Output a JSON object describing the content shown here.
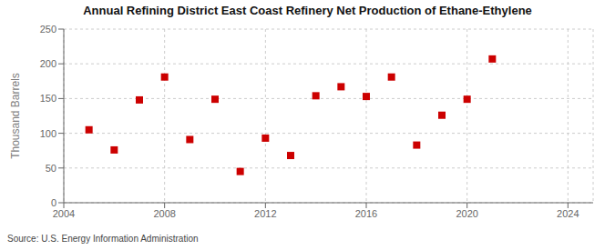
{
  "chart_data": {
    "type": "scatter",
    "title": "Annual Refining District East Coast Refinery Net Production of Ethane-Ethylene",
    "y_label": "Thousand Barrels",
    "annotations": [
      "Source: U.S. Energy Information Administration"
    ],
    "x": [
      2005,
      2006,
      2007,
      2008,
      2009,
      2010,
      2011,
      2012,
      2013,
      2014,
      2015,
      2016,
      2017,
      2018,
      2019,
      2020,
      2021
    ],
    "values": [
      105,
      76,
      148,
      181,
      91,
      149,
      45,
      93,
      68,
      154,
      167,
      153,
      181,
      83,
      126,
      149,
      207
    ],
    "color": "#cc0000",
    "marker": "square",
    "xlim": [
      2004,
      2025
    ],
    "ylim": [
      0,
      250
    ],
    "xticks": [
      2004,
      2008,
      2012,
      2016,
      2020,
      2024
    ],
    "yticks": [
      0,
      50,
      100,
      150,
      200,
      250
    ],
    "grid": true
  }
}
